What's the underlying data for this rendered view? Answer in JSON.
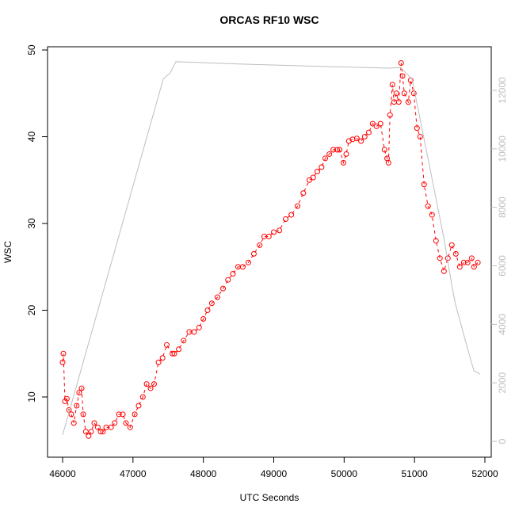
{
  "chart_data": {
    "type": "scatter",
    "title": "ORCAS RF10 WSC",
    "xlabel": "UTC Seconds",
    "ylabel": "WSC",
    "xlim": [
      45786,
      52090
    ],
    "xticks": [
      46000,
      47000,
      48000,
      49000,
      50000,
      51000,
      52000
    ],
    "ylim": [
      3.06,
      50.37
    ],
    "yticks": [
      10,
      20,
      30,
      40,
      50
    ],
    "y2lim": [
      -542,
      13490
    ],
    "y2ticks": [
      0,
      2000,
      4000,
      6000,
      8000,
      10000,
      12000
    ],
    "series": [
      {
        "color": "#ff0000",
        "x": [
          46000,
          46011,
          46034,
          46060,
          46090,
          46124,
          46160,
          46200,
          46236,
          46270,
          46293,
          46330,
          46370,
          46405,
          46450,
          46500,
          46540,
          46574,
          46620,
          46687,
          46740,
          46800,
          46856,
          46900,
          46960,
          47025,
          47080,
          47140,
          47194,
          47250,
          47300,
          47363,
          47420,
          47480,
          47560,
          47588,
          47650,
          47720,
          47800,
          47870,
          47940,
          48000,
          48060,
          48120,
          48200,
          48280,
          48350,
          48420,
          48493,
          48560,
          48640,
          48718,
          48800,
          48864,
          48930,
          49000,
          49080,
          49169,
          49250,
          49338,
          49420,
          49507,
          49560,
          49620,
          49680,
          49732,
          49790,
          49845,
          49900,
          49935,
          49990,
          50030,
          50067,
          50120,
          50180,
          50240,
          50292,
          50350,
          50405,
          50460,
          50517,
          50574,
          50610,
          50630,
          50652,
          50686,
          50710,
          50742,
          50776,
          50810,
          50830,
          50855,
          50912,
          50945,
          50990,
          51035,
          51080,
          51136,
          51192,
          51249,
          51305,
          51361,
          51418,
          51474,
          51530,
          51587,
          51643,
          51699,
          51755,
          51812,
          51846,
          51900
        ],
        "values": [
          14,
          15,
          9.5,
          9.8,
          8.5,
          8,
          7,
          9,
          10.5,
          11,
          8,
          6,
          5.5,
          6,
          7,
          6.5,
          6,
          6,
          6.5,
          6.5,
          7,
          8,
          8,
          7,
          6.5,
          8,
          9,
          10,
          11.5,
          11,
          11.5,
          14,
          14.5,
          16,
          15,
          15,
          15.5,
          16.5,
          17.5,
          17.5,
          18,
          19,
          20,
          20.8,
          21.5,
          22.5,
          23.5,
          24.2,
          25,
          25,
          25.5,
          26.5,
          27.5,
          28.5,
          28.5,
          29,
          29.2,
          30.5,
          31,
          32,
          33.5,
          35,
          35.3,
          36,
          36.5,
          37.5,
          38,
          38.5,
          38.5,
          38.5,
          37,
          38,
          39.5,
          39.7,
          39.8,
          39.5,
          40,
          40.5,
          41.5,
          41.2,
          41.5,
          38.5,
          37.5,
          37,
          42.5,
          46,
          44,
          45,
          44,
          48.5,
          47,
          45,
          44,
          46.5,
          45,
          41,
          40,
          34.5,
          32,
          31,
          28,
          26,
          24.5,
          26,
          27.5,
          26.5,
          25,
          25.5,
          25.5,
          26,
          25,
          25.5
        ]
      },
      {
        "color": "#bebebe",
        "axis": "y2",
        "x": [
          46000,
          47430,
          47530,
          47610,
          48500,
          49500,
          50625,
          50800,
          50966,
          51191,
          51416,
          51529,
          51585,
          51754,
          51845,
          51930
        ],
        "values": [
          217,
          12385,
          12600,
          12980,
          12900,
          12830,
          12760,
          12780,
          12385,
          9675,
          6965,
          5340,
          4660,
          3170,
          2410,
          2300
        ]
      }
    ]
  }
}
